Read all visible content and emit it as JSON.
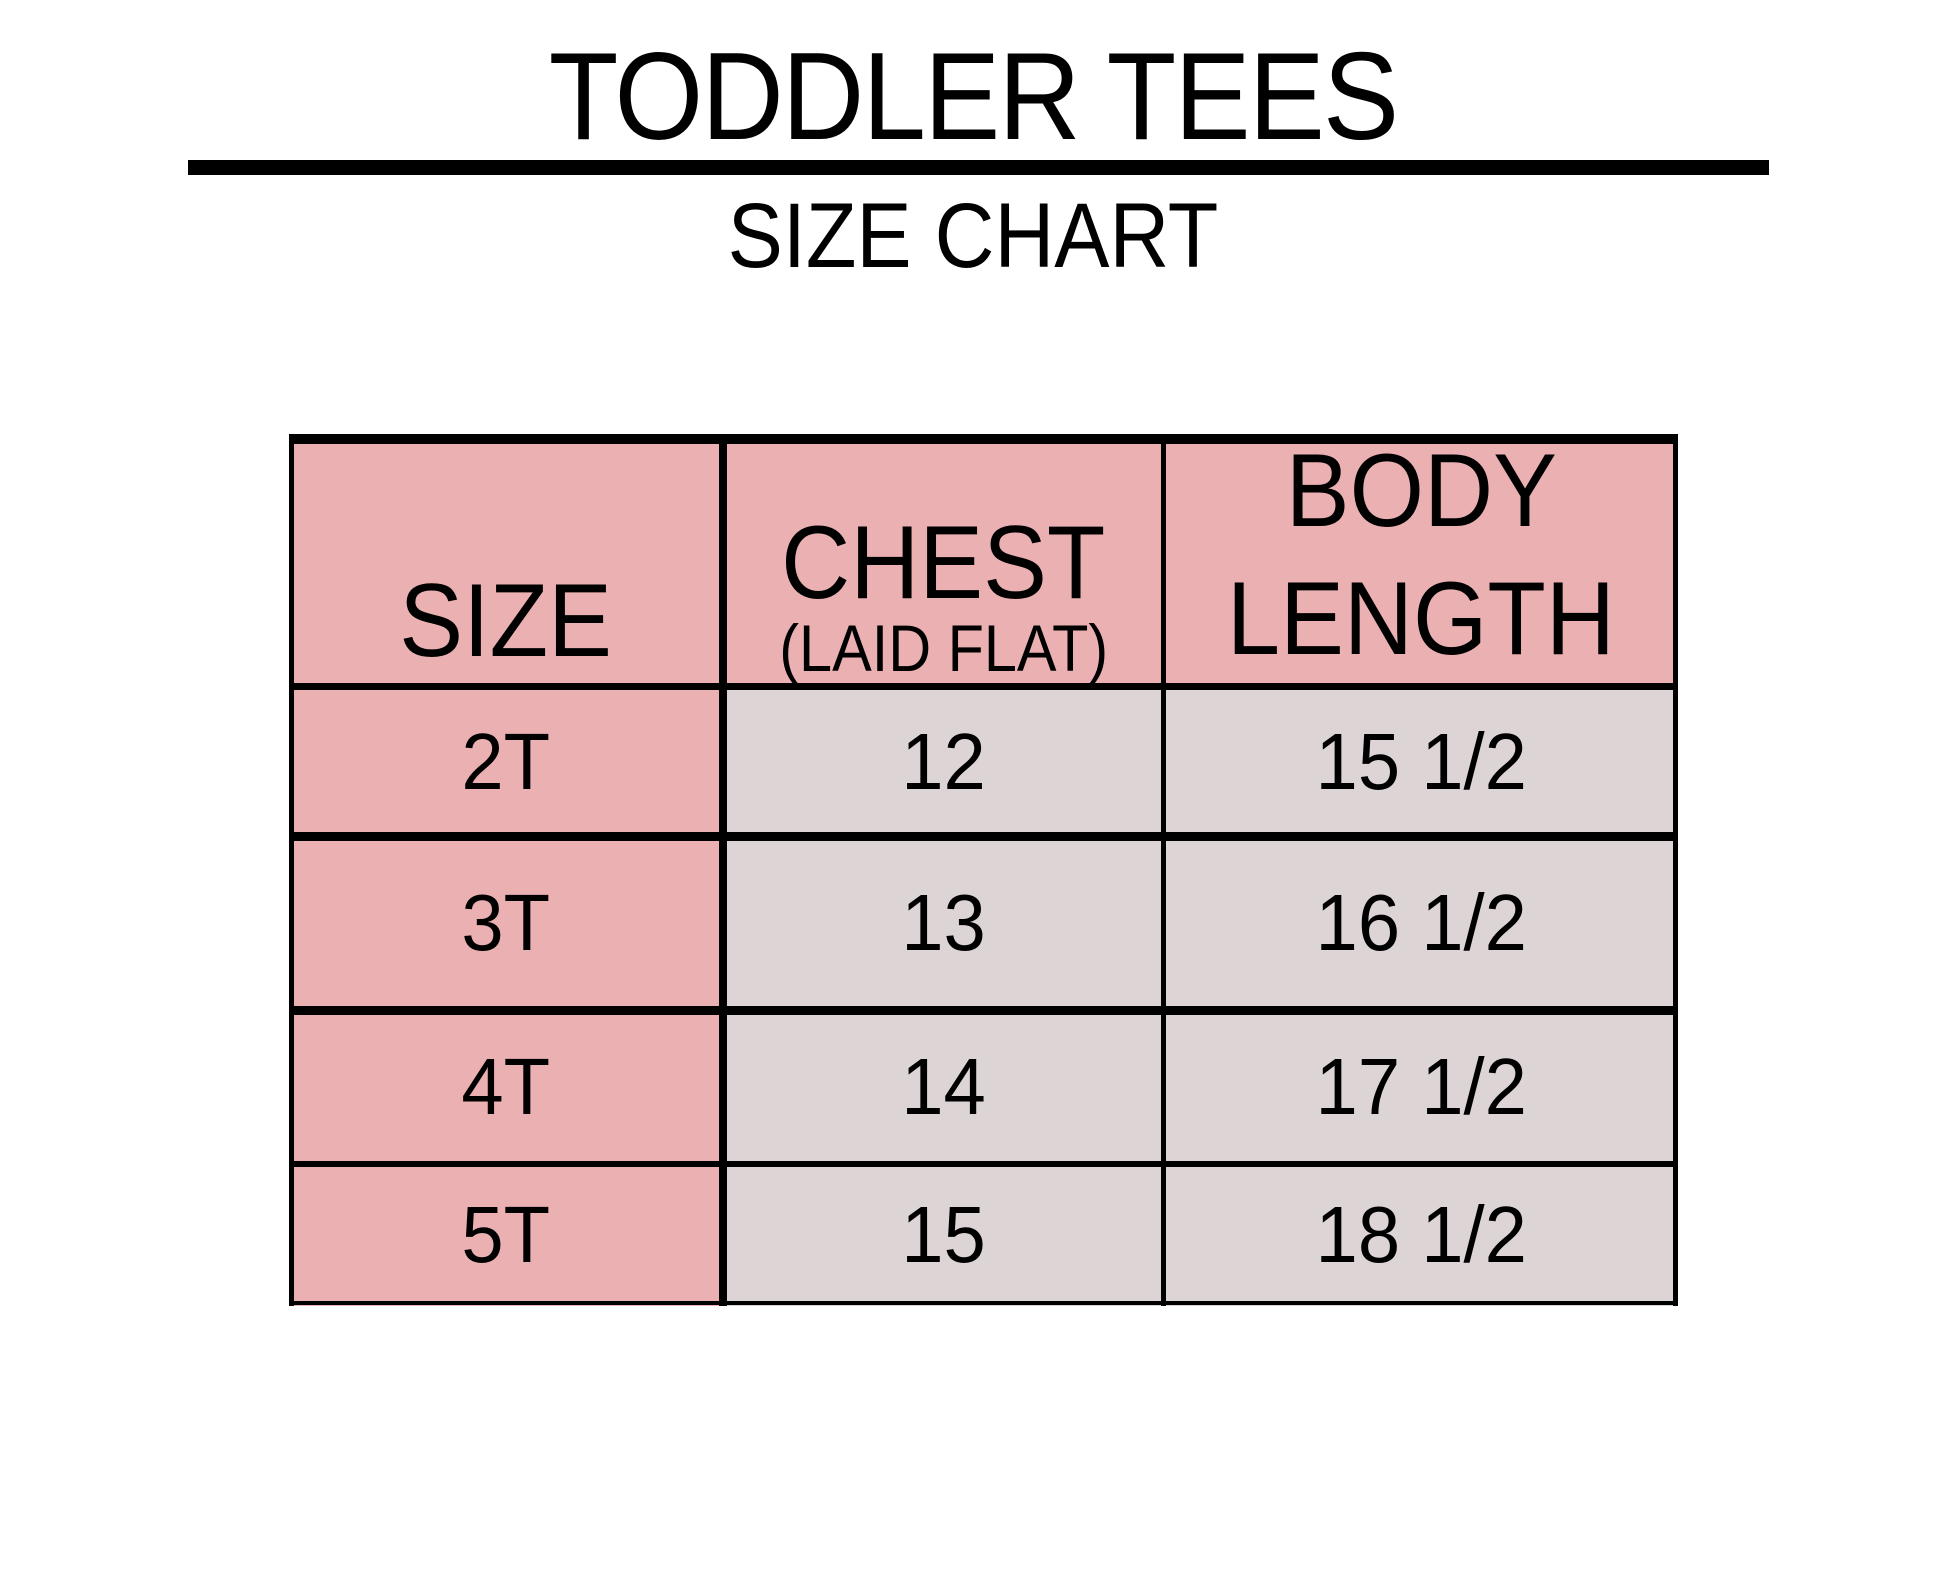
{
  "header": {
    "title": "TODDLER TEES",
    "subtitle": "SIZE CHART"
  },
  "colors": {
    "header_fill": "#ebb0b2",
    "size_column_fill": "#ebb0b2",
    "value_fill": "#dcd4d5",
    "lines": "#000000"
  },
  "table": {
    "columns": [
      {
        "label": "SIZE",
        "sublabel": ""
      },
      {
        "label": "CHEST",
        "sublabel": "(LAID FLAT)"
      },
      {
        "label": "BODY",
        "label2": "LENGTH"
      }
    ],
    "rows": [
      {
        "size": "2T",
        "chest": "12",
        "length": "15 1/2"
      },
      {
        "size": "3T",
        "chest": "13",
        "length": "16 1/2"
      },
      {
        "size": "4T",
        "chest": "14",
        "length": "17 1/2"
      },
      {
        "size": "5T",
        "chest": "15",
        "length": "18 1/2"
      }
    ]
  }
}
